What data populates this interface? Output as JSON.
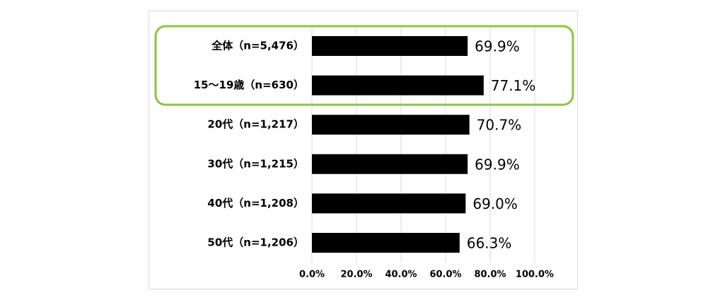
{
  "chart_data": {
    "type": "bar",
    "orientation": "horizontal",
    "categories": [
      "全体（n=5,476）",
      "15～19歳（n=630）",
      "20代（n=1,217）",
      "30代（n=1,215）",
      "40代（n=1,208）",
      "50代（n=1,206）"
    ],
    "values": [
      69.9,
      77.1,
      70.7,
      69.9,
      69.0,
      66.3
    ],
    "value_labels": [
      "69.9%",
      "77.1%",
      "70.7%",
      "69.9%",
      "69.0%",
      "66.3%"
    ],
    "color": "#000000",
    "xlim": [
      0,
      100
    ],
    "xticks": [
      {
        "value": 0,
        "label": "0.0%"
      },
      {
        "value": 20,
        "label": "20.0%"
      },
      {
        "value": 40,
        "label": "40.0%"
      },
      {
        "value": 60,
        "label": "60.0%"
      },
      {
        "value": 80,
        "label": "80.0%"
      },
      {
        "value": 100,
        "label": "100.0%"
      }
    ],
    "grid": true
  }
}
